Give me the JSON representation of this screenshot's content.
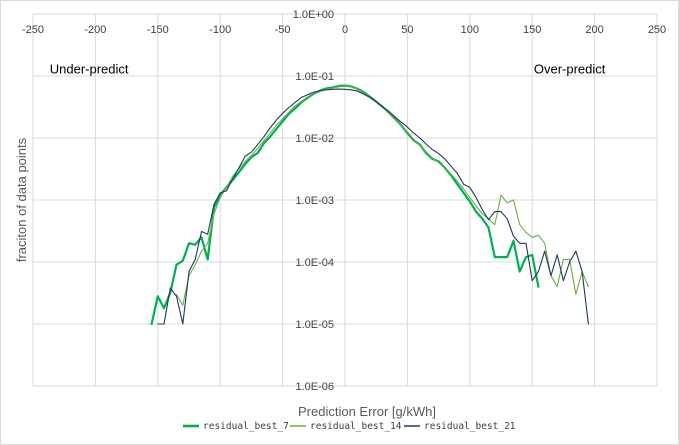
{
  "chart_data": {
    "type": "line",
    "title": "",
    "xlabel": "Prediction Error [g/kWh]",
    "ylabel": "fraciton of data points",
    "xlim": [
      -250,
      250
    ],
    "ylim": [
      1e-06,
      1
    ],
    "yscale": "log",
    "x_ticks": [
      -250,
      -200,
      -150,
      -100,
      -50,
      0,
      50,
      100,
      150,
      200,
      250
    ],
    "x_tick_labels": [
      "-250",
      "-200",
      "-150",
      "-100",
      "-50",
      "0",
      "50",
      "100",
      "150",
      "200",
      "250"
    ],
    "y_ticks": [
      1,
      0.1,
      0.01,
      0.001,
      0.0001,
      1e-05,
      1e-06
    ],
    "y_tick_labels": [
      "1.0E+00",
      "1.0E-01",
      "1.0E-02",
      "1.0E-03",
      "1.0E-04",
      "1.0E-05",
      "1.0E-06"
    ],
    "grid": true,
    "legend_position": "bottom",
    "annotations": [
      {
        "text": "Under-predict",
        "x": -205,
        "y": 0.133
      },
      {
        "text": "Over-predict",
        "x": 180,
        "y": 0.133
      }
    ],
    "series": [
      {
        "name": "residual_best_7",
        "color": "#00b050",
        "width": 2.2,
        "x": [
          -155,
          -150,
          -145,
          -140,
          -135,
          -130,
          -125,
          -120,
          -115,
          -110,
          -105,
          -100,
          -95,
          -90,
          -85,
          -80,
          -75,
          -70,
          -65,
          -60,
          -55,
          -50,
          -45,
          -40,
          -35,
          -30,
          -25,
          -20,
          -15,
          -10,
          -5,
          0,
          5,
          10,
          15,
          20,
          25,
          30,
          35,
          40,
          45,
          50,
          55,
          60,
          65,
          70,
          75,
          80,
          85,
          90,
          95,
          100,
          105,
          110,
          115,
          120,
          125,
          130,
          135,
          140,
          145,
          150,
          155
        ],
        "y": [
          1e-05,
          2.8e-05,
          1.8e-05,
          3.2e-05,
          9e-05,
          0.000105,
          0.0002,
          0.00019,
          0.00025,
          0.00011,
          0.00075,
          0.0012,
          0.0016,
          0.0021,
          0.0028,
          0.0038,
          0.0049,
          0.0057,
          0.0082,
          0.0105,
          0.014,
          0.0185,
          0.0245,
          0.03,
          0.0375,
          0.0445,
          0.052,
          0.058,
          0.063,
          0.0655,
          0.069,
          0.07,
          0.068,
          0.062,
          0.055,
          0.046,
          0.0385,
          0.032,
          0.026,
          0.0205,
          0.016,
          0.012,
          0.0092,
          0.0078,
          0.0057,
          0.0046,
          0.0042,
          0.0033,
          0.0025,
          0.0018,
          0.0013,
          0.00095,
          0.00065,
          0.0005,
          0.00036,
          0.00012,
          0.00012,
          0.00012,
          0.00022,
          7e-05,
          0.00012,
          0.00013,
          4e-05
        ]
      },
      {
        "name": "residual_best_14",
        "color": "#70ad47",
        "width": 1.1,
        "x": [
          -135,
          -130,
          -125,
          -120,
          -115,
          -110,
          -105,
          -100,
          -95,
          -90,
          -85,
          -80,
          -75,
          -70,
          -65,
          -60,
          -55,
          -50,
          -45,
          -40,
          -35,
          -30,
          -25,
          -20,
          -15,
          -10,
          -5,
          0,
          5,
          10,
          15,
          20,
          25,
          30,
          35,
          40,
          45,
          50,
          55,
          60,
          65,
          70,
          75,
          80,
          85,
          90,
          95,
          100,
          105,
          110,
          115,
          120,
          125,
          130,
          135,
          140,
          145,
          150,
          155,
          160,
          165,
          170,
          175,
          180,
          185,
          190,
          195
        ],
        "y": [
          3e-05,
          2e-05,
          6e-05,
          9e-05,
          0.00015,
          0.0002,
          0.0006,
          0.0011,
          0.0016,
          0.0024,
          0.0032,
          0.0042,
          0.0052,
          0.0068,
          0.009,
          0.012,
          0.016,
          0.0205,
          0.026,
          0.033,
          0.039,
          0.046,
          0.053,
          0.057,
          0.061,
          0.064,
          0.067,
          0.069,
          0.067,
          0.061,
          0.053,
          0.045,
          0.038,
          0.031,
          0.025,
          0.02,
          0.016,
          0.0125,
          0.0096,
          0.0075,
          0.006,
          0.0048,
          0.004,
          0.0033,
          0.0026,
          0.002,
          0.0015,
          0.0011,
          0.0008,
          0.0006,
          0.0005,
          0.0004,
          0.0012,
          0.0009,
          0.001,
          0.0004,
          0.0003,
          0.00025,
          0.00027,
          0.0002,
          6e-05,
          4e-05,
          0.00011,
          0.00011,
          3e-05,
          7e-05,
          4e-05
        ]
      },
      {
        "name": "residual_best_21",
        "color": "#1f3864",
        "width": 1.1,
        "x": [
          -150,
          -145,
          -140,
          -135,
          -130,
          -125,
          -120,
          -115,
          -110,
          -105,
          -100,
          -95,
          -90,
          -85,
          -80,
          -75,
          -70,
          -65,
          -60,
          -55,
          -50,
          -45,
          -40,
          -35,
          -30,
          -25,
          -20,
          -15,
          -10,
          -5,
          0,
          5,
          10,
          15,
          20,
          25,
          30,
          35,
          40,
          45,
          50,
          55,
          60,
          65,
          70,
          75,
          80,
          85,
          90,
          95,
          100,
          105,
          110,
          115,
          120,
          125,
          130,
          135,
          140,
          145,
          150,
          155,
          160,
          165,
          170,
          175,
          180,
          185,
          190,
          195
        ],
        "y": [
          1e-05,
          1e-05,
          3.8e-05,
          2.8e-05,
          1e-05,
          7e-05,
          0.00011,
          0.00031,
          0.00028,
          0.00085,
          0.0013,
          0.0014,
          0.0022,
          0.0033,
          0.0051,
          0.0059,
          0.0078,
          0.0105,
          0.0145,
          0.0195,
          0.025,
          0.031,
          0.0375,
          0.045,
          0.05,
          0.055,
          0.058,
          0.06,
          0.061,
          0.0615,
          0.061,
          0.06,
          0.057,
          0.051,
          0.045,
          0.039,
          0.032,
          0.027,
          0.022,
          0.018,
          0.015,
          0.012,
          0.01,
          0.008,
          0.0065,
          0.0056,
          0.0046,
          0.0035,
          0.0027,
          0.0018,
          0.0016,
          0.0011,
          0.0007,
          0.00048,
          0.00065,
          0.00065,
          0.0005,
          0.00026,
          0.0002,
          0.0002,
          5e-05,
          7e-05,
          0.00015,
          6e-05,
          0.00013,
          5e-05,
          0.0001,
          0.00015,
          7e-05,
          1e-05
        ]
      }
    ]
  }
}
